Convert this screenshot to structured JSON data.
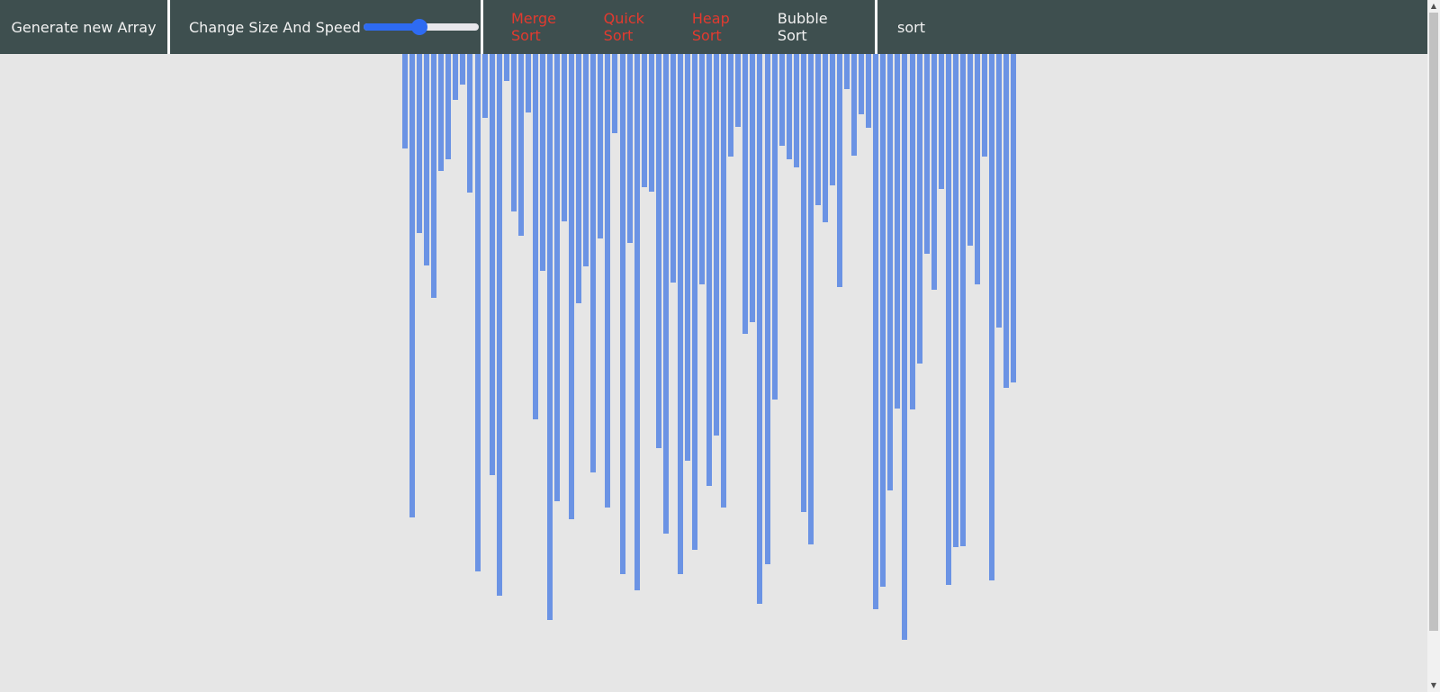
{
  "navbar": {
    "generate_label": "Generate new Array",
    "size_speed_label": "Change Size And Speed",
    "slider_value": 0.49,
    "algorithms": [
      {
        "label": "Merge Sort",
        "state": "disabled"
      },
      {
        "label": "Quick Sort",
        "state": "disabled"
      },
      {
        "label": "Heap Sort",
        "state": "disabled"
      },
      {
        "label": "Bubble Sort",
        "state": "active"
      }
    ],
    "sort_label": "sort"
  },
  "colors": {
    "navbar_bg": "#3e4f4f",
    "bar": "#6b93e4",
    "disabled_text": "#e33a2f",
    "slider_accent": "#2e6bf2",
    "page_bg": "#e6e6e6"
  },
  "array": [
    105,
    515,
    199,
    235,
    271,
    130,
    117,
    51,
    34,
    154,
    575,
    71,
    468,
    602,
    30,
    175,
    202,
    65,
    406,
    241,
    629,
    497,
    186,
    517,
    277,
    236,
    465,
    205,
    504,
    88,
    578,
    210,
    596,
    148,
    153,
    438,
    533,
    254,
    578,
    452,
    551,
    256,
    480,
    424,
    504,
    114,
    81,
    311,
    298,
    611,
    567,
    384,
    102,
    117,
    126,
    509,
    545,
    168,
    187,
    146,
    259,
    39,
    113,
    67,
    82,
    617,
    592,
    485,
    394,
    651,
    395,
    344,
    222,
    262,
    150,
    590,
    548,
    547,
    213,
    256,
    114,
    585,
    304,
    371,
    365
  ]
}
